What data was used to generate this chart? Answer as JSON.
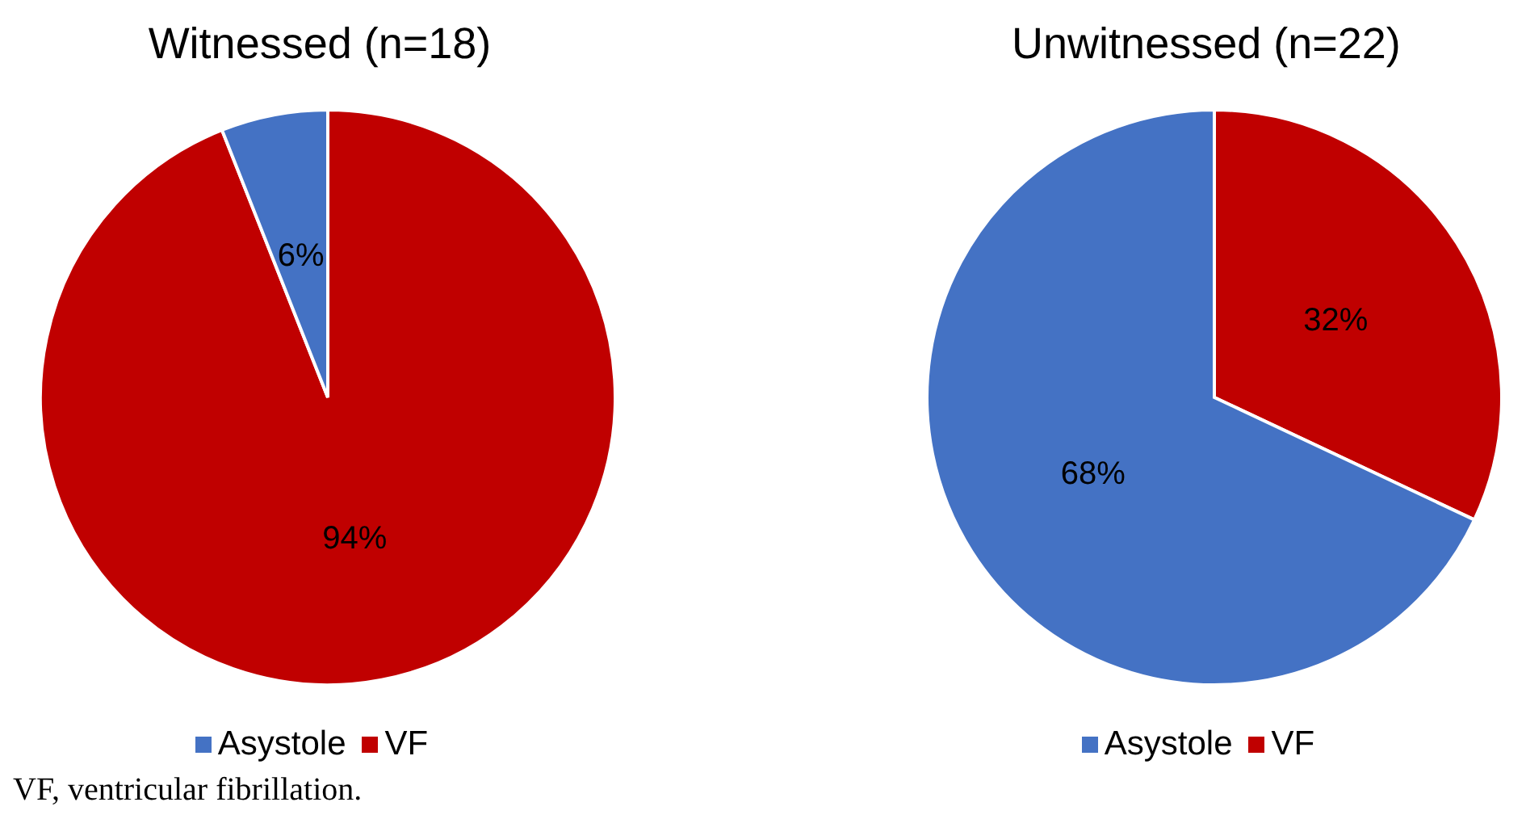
{
  "chart_data": [
    {
      "type": "pie",
      "title": "Witnessed (n=18)",
      "categories": [
        "VF",
        "Asystole"
      ],
      "values": [
        94,
        6
      ],
      "colors": [
        "#c00000",
        "#4472c4"
      ],
      "value_labels": [
        "94%",
        "6%"
      ],
      "legend": "bottom",
      "annotations": [
        "VF, ventricular fibrillation."
      ]
    },
    {
      "type": "pie",
      "title": "Unwitnessed (n=22)",
      "categories": [
        "VF",
        "Asystole"
      ],
      "values": [
        32,
        68
      ],
      "colors": [
        "#c00000",
        "#4472c4"
      ],
      "value_labels": [
        "32%",
        "68%"
      ],
      "legend": "bottom"
    }
  ]
}
